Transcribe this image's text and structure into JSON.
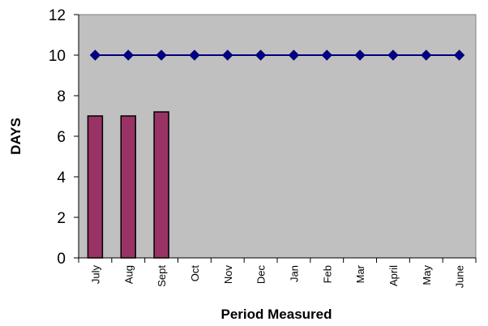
{
  "chart_data": {
    "type": "bar",
    "xlabel": "Period Measured",
    "ylabel": "DAYS",
    "ylim": [
      0,
      12
    ],
    "yticks": [
      0,
      2,
      4,
      6,
      8,
      10,
      12
    ],
    "categories": [
      "July",
      "Aug",
      "Sept",
      "Oct",
      "Nov",
      "Dec",
      "Jan",
      "Feb",
      "Mar",
      "April",
      "May",
      "June"
    ],
    "series": [
      {
        "type": "bar",
        "color": "#993366",
        "values": [
          7.0,
          7.0,
          7.2,
          null,
          null,
          null,
          null,
          null,
          null,
          null,
          null,
          null
        ]
      },
      {
        "type": "line",
        "color": "#000080",
        "marker": "diamond",
        "values": [
          10,
          10,
          10,
          10,
          10,
          10,
          10,
          10,
          10,
          10,
          10,
          10
        ]
      }
    ],
    "plot_background": "#c0c0c0",
    "grid": false,
    "legend": false
  }
}
